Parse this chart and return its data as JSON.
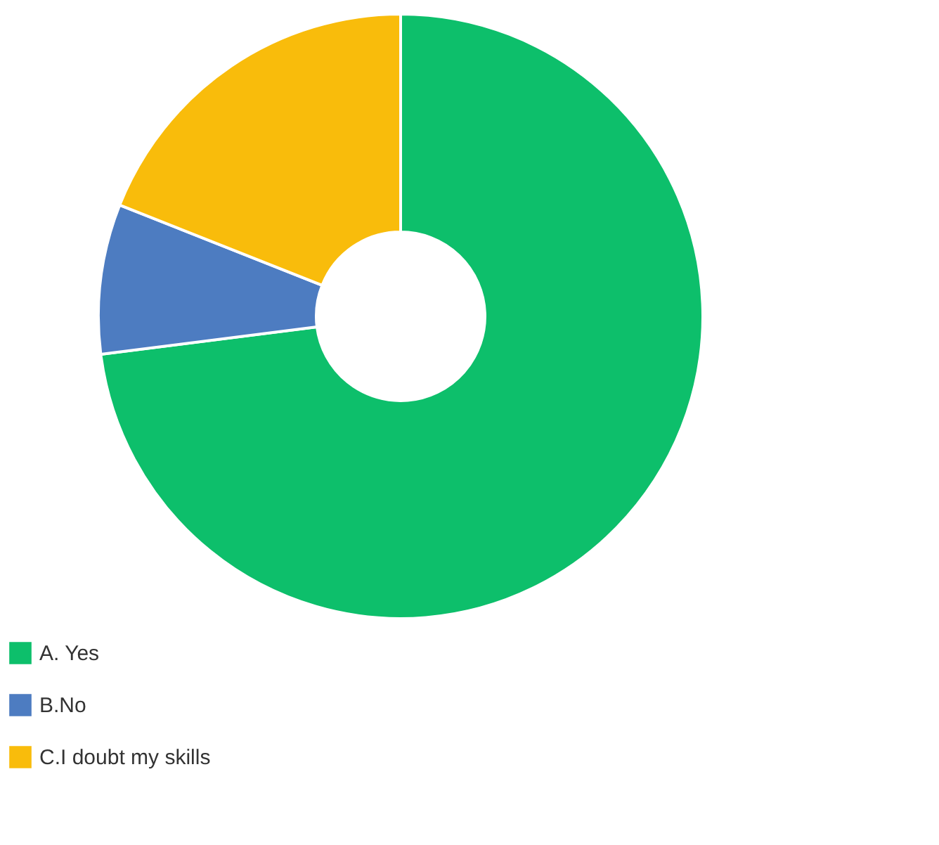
{
  "chart_data": {
    "type": "donut",
    "categories": [
      "A. Yes",
      "B.No",
      "C.I doubt my skills"
    ],
    "values": [
      73,
      8,
      19
    ],
    "colors": [
      "#0dbf6b",
      "#4d7cc1",
      "#f9bc0b"
    ],
    "legend": "bottom left"
  }
}
